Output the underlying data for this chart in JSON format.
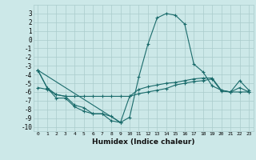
{
  "xlabel": "Humidex (Indice chaleur)",
  "bg_color": "#cce8e8",
  "grid_color": "#aacccc",
  "line_color": "#1a6b6b",
  "xlim": [
    -0.5,
    23.5
  ],
  "ylim": [
    -10.5,
    4
  ],
  "yticks": [
    3,
    2,
    1,
    0,
    -1,
    -2,
    -3,
    -4,
    -5,
    -6,
    -7,
    -8,
    -9,
    -10
  ],
  "xticks": [
    0,
    1,
    2,
    3,
    4,
    5,
    6,
    7,
    8,
    9,
    10,
    11,
    12,
    13,
    14,
    15,
    16,
    17,
    18,
    19,
    20,
    21,
    22,
    23
  ],
  "line1_x": [
    0,
    1,
    2,
    3,
    4,
    5,
    6,
    7,
    8,
    9,
    10,
    11,
    12,
    13,
    14,
    15,
    16,
    17,
    18,
    19,
    20,
    21,
    22,
    23
  ],
  "line1_y": [
    -3.5,
    -5.5,
    -6.3,
    -6.5,
    -7.5,
    -7.8,
    -8.5,
    -8.5,
    -9.3,
    -9.5,
    -8.9,
    -4.3,
    -0.5,
    2.5,
    3.0,
    2.8,
    1.8,
    -2.8,
    -3.7,
    -5.3,
    -5.8,
    -6.0,
    -4.7,
    -5.8
  ],
  "line2_x": [
    0,
    1,
    2,
    3,
    4,
    5,
    6,
    7,
    8,
    9,
    10,
    11,
    12,
    13,
    14,
    15,
    16,
    17,
    18,
    19,
    20,
    21,
    22,
    23
  ],
  "line2_y": [
    -5.5,
    -5.7,
    -6.3,
    -6.5,
    -6.5,
    -6.5,
    -6.5,
    -6.5,
    -6.5,
    -6.5,
    -6.5,
    -6.2,
    -6.0,
    -5.8,
    -5.6,
    -5.2,
    -5.0,
    -4.8,
    -4.7,
    -4.5,
    -5.9,
    -6.0,
    -5.5,
    -6.0
  ],
  "line3_x": [
    0,
    9
  ],
  "line3_y": [
    -3.5,
    -9.5
  ],
  "line4_x": [
    0,
    1,
    2,
    3,
    4,
    5,
    6,
    7,
    8,
    9,
    10,
    11,
    12,
    13,
    14,
    15,
    16,
    17,
    18,
    19,
    20,
    21,
    22,
    23
  ],
  "line4_y": [
    -3.5,
    -5.5,
    -6.7,
    -6.7,
    -7.7,
    -8.2,
    -8.5,
    -8.5,
    -8.8,
    -9.5,
    -6.5,
    -5.7,
    -5.4,
    -5.2,
    -5.0,
    -4.9,
    -4.7,
    -4.5,
    -4.4,
    -4.4,
    -5.8,
    -6.0,
    -6.0,
    -6.0
  ]
}
